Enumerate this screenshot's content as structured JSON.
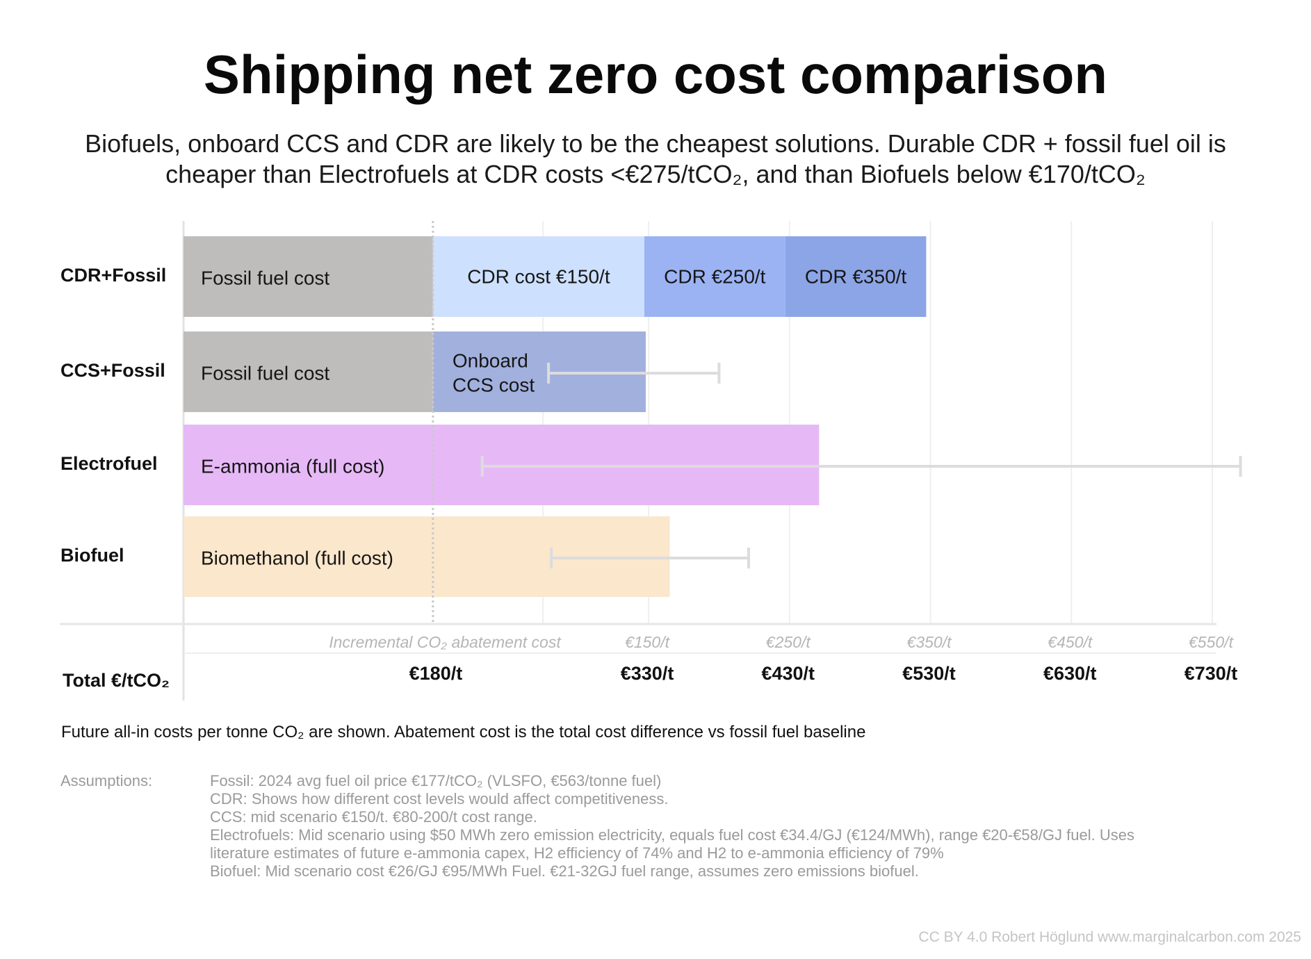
{
  "title": "Shipping net zero cost comparison",
  "subtitle_line1": "Biofuels, onboard CCS and CDR are likely to be the cheapest solutions. Durable CDR + fossil fuel oil is",
  "subtitle_line2": "cheaper than Electrofuels at CDR costs <€275/tCO₂, and than Biofuels below €170/tCO₂",
  "chart_data": {
    "type": "bar",
    "orientation": "horizontal",
    "stacked": true,
    "xlim": [
      0,
      730
    ],
    "x_label_row_title": "Total €/tCO₂",
    "x_total_ticks": [
      {
        "value": 180,
        "label": "€180/t"
      },
      {
        "value": 330,
        "label": "€330/t"
      },
      {
        "value": 430,
        "label": "€430/t"
      },
      {
        "value": 530,
        "label": "€530/t"
      },
      {
        "value": 630,
        "label": "€630/t"
      },
      {
        "value": 730,
        "label": "€730/t"
      }
    ],
    "x_incremental_title": "Incremental CO₂ abatement cost",
    "x_incremental_ticks": [
      {
        "value": 330,
        "label": "€150/t"
      },
      {
        "value": 430,
        "label": "€250/t"
      },
      {
        "value": 530,
        "label": "€350/t"
      },
      {
        "value": 630,
        "label": "€450/t"
      },
      {
        "value": 730,
        "label": "€550/t"
      }
    ],
    "fossil_baseline": 177,
    "rows": [
      {
        "category": "CDR+Fossil",
        "segments": [
          {
            "label": "Fossil fuel cost",
            "start": 0,
            "end": 177,
            "color": "#bfbdbc"
          },
          {
            "label": "CDR cost €150/t",
            "start": 177,
            "end": 327,
            "color": "#cde0fe"
          },
          {
            "label": "CDR €250/t",
            "start": 327,
            "end": 427,
            "color": "#9bb3f3"
          },
          {
            "label": "CDR €350/t",
            "start": 427,
            "end": 527,
            "color": "#8ca5e6"
          }
        ]
      },
      {
        "category": "CCS+Fossil",
        "segments": [
          {
            "label": "Fossil fuel cost",
            "start": 0,
            "end": 177,
            "color": "#bfbdbc"
          },
          {
            "label": "Onboard CCS cost",
            "start": 177,
            "end": 328,
            "color": "#a2b0dd"
          }
        ],
        "range": [
          259,
          380
        ]
      },
      {
        "category": "Electrofuel",
        "segments": [
          {
            "label": "E-ammonia (full cost)",
            "start": 0,
            "end": 451,
            "color": "#e6b9f6"
          }
        ],
        "range": [
          212,
          750
        ]
      },
      {
        "category": "Biofuel",
        "segments": [
          {
            "label": "Biomethanol (full cost)",
            "start": 0,
            "end": 345,
            "color": "#fbe7cb"
          }
        ],
        "range": [
          261,
          401
        ]
      }
    ]
  },
  "note": "Future all-in costs per tonne CO₂ are shown. Abatement cost is the total cost difference vs fossil fuel baseline",
  "assumptions_label": "Assumptions:",
  "assumptions": [
    "Fossil: 2024 avg fuel oil price €177/tCO₂ (VLSFO, €563/tonne fuel)",
    "CDR: Shows how different cost levels would affect competitiveness.",
    "CCS: mid scenario €150/t. €80-200/t cost range.",
    "Electrofuels: Mid scenario using $50 MWh zero emission electricity, equals fuel cost €34.4/GJ (€124/MWh), range €20-€58/GJ fuel. Uses",
    "literature estimates of future e-ammonia capex, H2 efficiency of 74% and H2 to e-ammonia efficiency of 79%",
    "Biofuel: Mid scenario cost €26/GJ €95/MWh Fuel. €21-32GJ fuel range, assumes zero emissions biofuel."
  ],
  "credit": "CC BY 4.0  Robert Höglund www.marginalcarbon.com 2025"
}
